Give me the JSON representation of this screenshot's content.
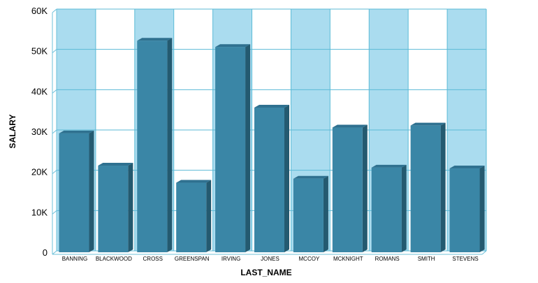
{
  "chart_data": {
    "type": "bar",
    "categories": [
      "BANNING",
      "BLACKWOOD",
      "CROSS",
      "GREENSPAN",
      "IRVING",
      "JONES",
      "MCCOY",
      "MCKNIGHT",
      "ROMANS",
      "SMITH",
      "STEVENS"
    ],
    "values": [
      29500,
      21500,
      52500,
      17250,
      50950,
      35900,
      18250,
      30950,
      21000,
      31450,
      20800
    ],
    "xlabel": "LAST_NAME",
    "ylabel": "SALARY",
    "ylim": [
      0,
      60000
    ],
    "yticks": [
      0,
      10000,
      20000,
      30000,
      40000,
      50000,
      60000
    ],
    "ytick_labels": [
      "0",
      "10K",
      "20K",
      "30K",
      "40K",
      "50K",
      "60K"
    ],
    "grid": true,
    "colors": {
      "bar_front": "#3a86a6",
      "bar_side": "#245a70",
      "bar_top": "#2f7190",
      "band_light": "#aadcef",
      "band_white": "#ffffff",
      "grid_line": "#5bbad6",
      "axis_line": "#6cc0da"
    }
  }
}
